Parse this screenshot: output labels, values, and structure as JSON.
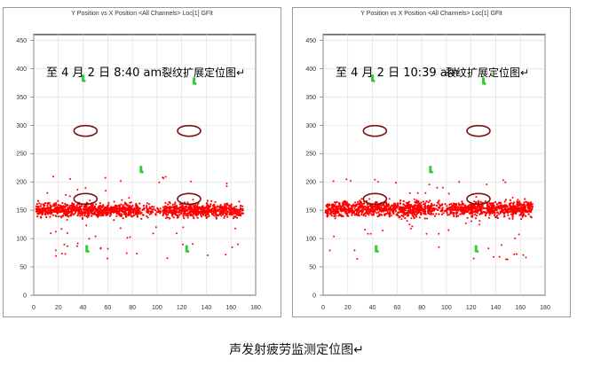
{
  "panels": [
    {
      "title": "Y Position vs X Position <All Channels> Loc[1] GFlt",
      "date_label": "至 4 月 2 日 8:40 am",
      "map_label": "裂纹扩展定位图↵"
    },
    {
      "title": "Y Position vs X Position <All Channels> Loc[1] GFlt",
      "date_label": "至 4 月 2 日 10:39 am",
      "map_label": "裂纹扩展定位图↵"
    }
  ],
  "caption": "声发射疲劳监测定位图↵",
  "chart_data": [
    {
      "type": "scatter",
      "title": "Y Position vs X Position <All Channels> Loc[1] GFlt",
      "x_ticks": [
        0,
        20,
        40,
        60,
        80,
        100,
        120,
        140,
        160,
        180
      ],
      "y_ticks": [
        0,
        50,
        100,
        150,
        200,
        250,
        300,
        350,
        400,
        450
      ],
      "xlim": [
        0,
        180
      ],
      "ylim": [
        0,
        460
      ],
      "grid": true,
      "series": [
        {
          "color": "#ff0000",
          "band": {
            "x": [
              2,
              170
            ],
            "y_center": 150,
            "y_spread": 20,
            "gap_x": [
              85,
              105
            ]
          }
        }
      ],
      "sensors": [
        [
          40,
          383
        ],
        [
          130,
          378
        ],
        [
          87,
          222
        ],
        [
          43,
          82
        ],
        [
          124,
          82
        ]
      ],
      "ellipses": [
        [
          42,
          290
        ],
        [
          126,
          290
        ],
        [
          42,
          170
        ],
        [
          126,
          170
        ]
      ],
      "colors": {
        "points": "#ff0000",
        "sensors": "#33cc33",
        "ellipses": "#7a1010"
      }
    },
    {
      "type": "scatter",
      "title": "Y Position vs X Position <All Channels> Loc[1] GFlt",
      "x_ticks": [
        0,
        20,
        40,
        60,
        80,
        100,
        120,
        140,
        160,
        180
      ],
      "y_ticks": [
        0,
        50,
        100,
        150,
        200,
        250,
        300,
        350,
        400,
        450
      ],
      "xlim": [
        0,
        180
      ],
      "ylim": [
        0,
        460
      ],
      "grid": true,
      "series": [
        {
          "color": "#ff0000",
          "band": {
            "x": [
              2,
              170
            ],
            "y_center": 152,
            "y_spread": 22,
            "gap_x": [
              88,
              102
            ]
          }
        }
      ],
      "sensors": [
        [
          40,
          383
        ],
        [
          130,
          378
        ],
        [
          87,
          222
        ],
        [
          43,
          82
        ],
        [
          124,
          82
        ]
      ],
      "ellipses": [
        [
          42,
          290
        ],
        [
          126,
          290
        ],
        [
          42,
          170
        ],
        [
          126,
          170
        ]
      ],
      "colors": {
        "points": "#ff0000",
        "sensors": "#33cc33",
        "ellipses": "#7a1010"
      }
    }
  ]
}
